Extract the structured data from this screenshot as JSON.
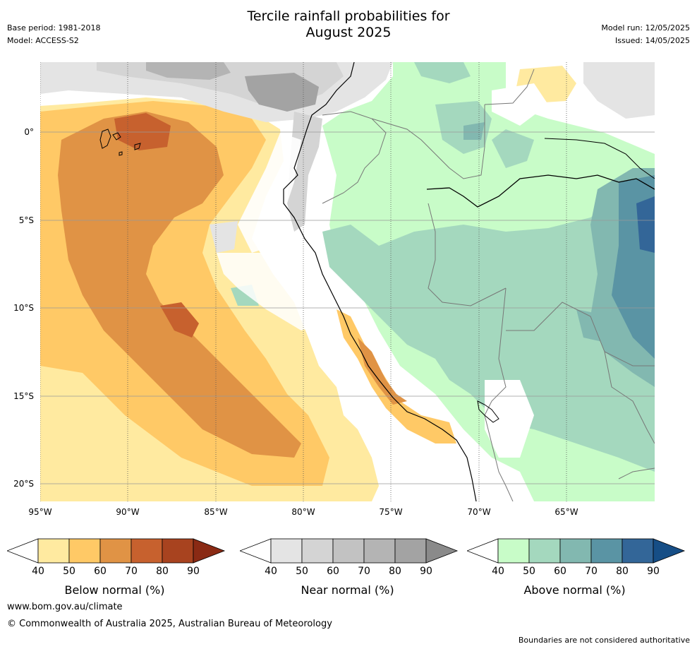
{
  "header": {
    "title_line1": "Tercile rainfall probabilities for",
    "title_line2": "August 2025",
    "base_period": "Base period: 1981-2018",
    "model": "Model: ACCESS-S2",
    "model_run": "Model run: 12/05/2025",
    "issued": "Issued: 14/05/2025"
  },
  "axes": {
    "x_ticks": [
      "95°W",
      "90°W",
      "85°W",
      "80°W",
      "75°W",
      "70°W",
      "65°W"
    ],
    "y_ticks": [
      "0°",
      "5°S",
      "10°S",
      "15°S",
      "20°S"
    ]
  },
  "colorbars": [
    {
      "title": "Below normal (%)",
      "labels": [
        "40",
        "50",
        "60",
        "70",
        "80",
        "90"
      ],
      "colors": [
        "#ffffff",
        "#ffeaa0",
        "#ffc966",
        "#e09345",
        "#c7612e",
        "#a8431f",
        "#8a2a14"
      ]
    },
    {
      "title": "Near normal (%)",
      "labels": [
        "40",
        "50",
        "60",
        "70",
        "80",
        "90"
      ],
      "colors": [
        "#ffffff",
        "#e4e4e4",
        "#d4d4d4",
        "#c2c2c2",
        "#b4b4b4",
        "#a3a3a3",
        "#8a8a8a"
      ]
    },
    {
      "title": "Above normal (%)",
      "labels": [
        "40",
        "50",
        "60",
        "70",
        "80",
        "90"
      ],
      "colors": [
        "#ffffff",
        "#c8fcc8",
        "#a4d8be",
        "#82b8b0",
        "#5a94a4",
        "#336698",
        "#164e86"
      ]
    }
  ],
  "footer": {
    "website": "www.bom.gov.au/climate",
    "copyright": "© Commonwealth of Australia 2025, Australian Bureau of Meteorology",
    "disclaimer": "Boundaries are not considered authoritative"
  }
}
